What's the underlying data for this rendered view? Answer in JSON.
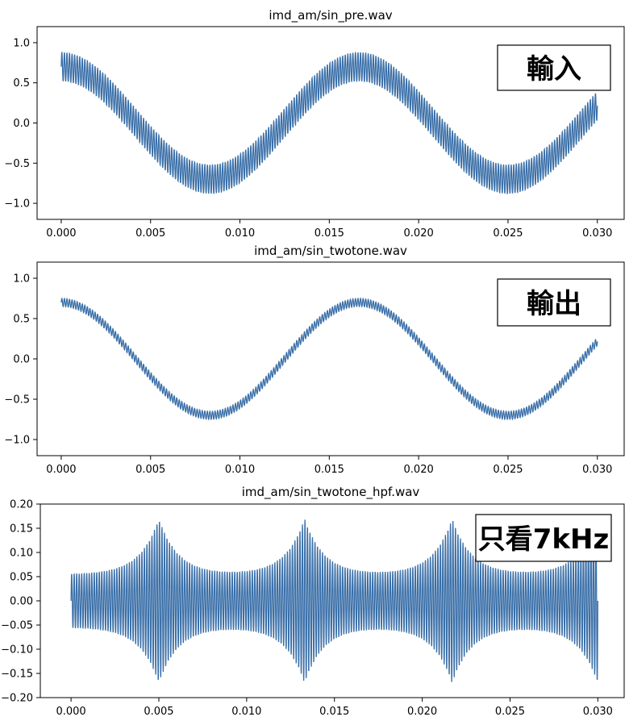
{
  "chart_data": [
    {
      "type": "line",
      "title": "imd_am/sin_pre.wav",
      "xlim": [
        -0.00135,
        0.0315
      ],
      "ylim": [
        -1.2,
        1.2
      ],
      "xticks": [
        "0.000",
        "0.005",
        "0.010",
        "0.015",
        "0.020",
        "0.025",
        "0.030"
      ],
      "yticks": [
        "1.0",
        "0.5",
        "0.0",
        "−0.5",
        "−1.0"
      ],
      "series": [
        {
          "amplitude_low": 0.7,
          "low_freq_hz": 60,
          "amplitude_high": 0.18,
          "high_freq_hz": 7000,
          "x_start": 0.0,
          "x_end": 0.03
        }
      ],
      "annotation": "輸入",
      "color": "#3a6fa8",
      "grid": false
    },
    {
      "type": "line",
      "title": "imd_am/sin_twotone.wav",
      "xlim": [
        -0.00135,
        0.0315
      ],
      "ylim": [
        -1.2,
        1.2
      ],
      "xticks": [
        "0.000",
        "0.005",
        "0.010",
        "0.015",
        "0.020",
        "0.025",
        "0.030"
      ],
      "yticks": [
        "1.0",
        "0.5",
        "0.0",
        "−0.5",
        "−1.0"
      ],
      "series": [
        {
          "amplitude_low": 0.7,
          "low_freq_hz": 60,
          "amplitude_high": 0.05,
          "high_freq_hz": 7000,
          "x_start": 0.0,
          "x_end": 0.03
        }
      ],
      "annotation": "輸出",
      "color": "#3a6fa8",
      "grid": false
    },
    {
      "type": "line",
      "title": "imd_am/sin_twotone_hpf.wav",
      "xlim": [
        -0.00175,
        0.0315
      ],
      "ylim": [
        -0.2,
        0.2
      ],
      "xticks": [
        "0.000",
        "0.005",
        "0.010",
        "0.015",
        "0.020",
        "0.025",
        "0.030"
      ],
      "yticks": [
        "0.20",
        "0.15",
        "0.10",
        "0.05",
        "0.00",
        "−0.05",
        "−0.10",
        "−0.15",
        "−0.20"
      ],
      "series": [
        {
          "envelope_base": 0.055,
          "peak_amplitude": 0.17,
          "peak_x": [
            0.005,
            0.0133,
            0.0217
          ],
          "high_freq_hz": 7000,
          "x_start": 0.0,
          "x_end": 0.03
        }
      ],
      "annotation": "只看7kHz",
      "color": "#3a6fa8",
      "grid": false
    }
  ]
}
